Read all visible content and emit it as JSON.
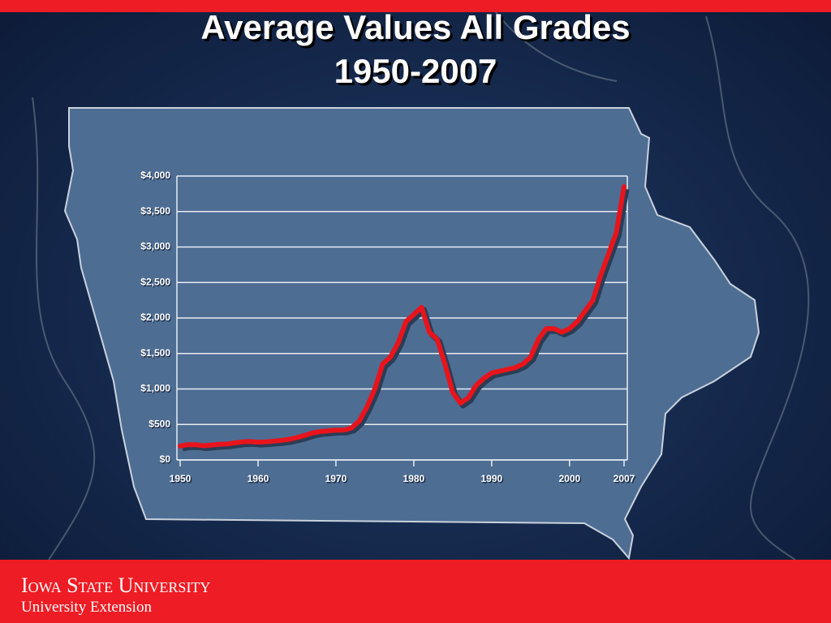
{
  "chart_data": {
    "type": "line",
    "title": "Average Values All Grades",
    "subtitle": "1950-2007",
    "x": [
      1950,
      1951,
      1952,
      1953,
      1954,
      1955,
      1956,
      1957,
      1958,
      1959,
      1960,
      1961,
      1962,
      1963,
      1964,
      1965,
      1966,
      1967,
      1968,
      1969,
      1970,
      1971,
      1972,
      1973,
      1974,
      1975,
      1976,
      1977,
      1978,
      1979,
      1980,
      1981,
      1982,
      1983,
      1984,
      1985,
      1986,
      1987,
      1988,
      1989,
      1990,
      1991,
      1992,
      1993,
      1994,
      1995,
      1996,
      1997,
      1998,
      1999,
      2000,
      2001,
      2002,
      2003,
      2004,
      2005,
      2006,
      2007
    ],
    "series": [
      {
        "color": "#e8141c",
        "values": [
          195,
          215,
          215,
          200,
          210,
          220,
          225,
          240,
          255,
          260,
          250,
          255,
          265,
          275,
          290,
          315,
          345,
          380,
          400,
          410,
          420,
          420,
          450,
          550,
          750,
          1000,
          1350,
          1450,
          1650,
          1950,
          2050,
          2150,
          1800,
          1700,
          1350,
          950,
          800,
          875,
          1050,
          1150,
          1225,
          1250,
          1275,
          1300,
          1350,
          1450,
          1700,
          1850,
          1850,
          1800,
          1850,
          1950,
          2100,
          2250,
          2600,
          2900,
          3200,
          3850
        ]
      }
    ],
    "xlim": [
      1950,
      2007
    ],
    "xticks": [
      1950,
      1960,
      1970,
      1980,
      1990,
      2000,
      2007
    ],
    "ylim": [
      0,
      4000
    ],
    "yticks": [
      {
        "value": 0,
        "label": "$0"
      },
      {
        "value": 500,
        "label": "$500"
      },
      {
        "value": 1000,
        "label": "$1,000"
      },
      {
        "value": 1500,
        "label": "$1,500"
      },
      {
        "value": 2000,
        "label": "$2,000"
      },
      {
        "value": 2500,
        "label": "$2,500"
      },
      {
        "value": 3000,
        "label": "$3,000"
      },
      {
        "value": 3500,
        "label": "$3,500"
      },
      {
        "value": 4000,
        "label": "$4,000"
      }
    ],
    "grid": true
  },
  "footer": {
    "university": "Iowa State University",
    "unit": "University Extension"
  }
}
